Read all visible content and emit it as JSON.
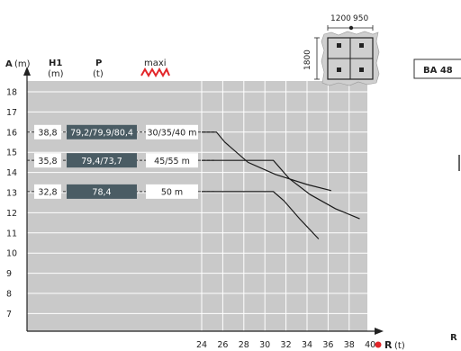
{
  "header": {
    "a_label": "A",
    "a_unit": "(m)",
    "h1_label": "H1",
    "h1_unit": "(m)",
    "p_label": "P",
    "p_unit": "(t)",
    "maxi_label": "maxi"
  },
  "model": "BA 48",
  "base": {
    "width1": "1200",
    "width2": "950",
    "depth": "1800"
  },
  "r_axis": {
    "label": "R",
    "unit": "(t)",
    "cut_label": "R"
  },
  "chart_data": {
    "type": "line",
    "xlabel": "R (t)",
    "ylabel": "A (m)",
    "y_ticks": [
      7,
      8,
      9,
      10,
      11,
      12,
      13,
      14,
      15,
      16,
      17,
      18
    ],
    "x_ticks": [
      24,
      26,
      28,
      30,
      32,
      34,
      36,
      38,
      40
    ],
    "ylim": [
      6.3,
      18.4
    ],
    "grid": true,
    "rows": [
      {
        "h1": "38,8",
        "p": "79,2/79,9/80,4",
        "len": "30/35/40 m",
        "a": 16
      },
      {
        "h1": "35,8",
        "p": "79,4/73,7",
        "len": "45/55 m",
        "a": 14.6
      },
      {
        "h1": "32,8",
        "p": "78,4",
        "len": "50 m",
        "a": 13.05
      }
    ],
    "series": [
      {
        "values": [
          [
            24,
            16
          ],
          [
            25.4,
            16
          ],
          [
            26.2,
            15.5
          ],
          [
            28.4,
            14.5
          ],
          [
            31,
            13.9
          ],
          [
            34,
            13.4
          ],
          [
            36.3,
            13.1
          ]
        ]
      },
      {
        "values": [
          [
            24,
            14.6
          ],
          [
            30.8,
            14.6
          ],
          [
            32.3,
            13.7
          ],
          [
            34.3,
            12.9
          ],
          [
            36.7,
            12.2
          ],
          [
            39,
            11.7
          ]
        ]
      },
      {
        "values": [
          [
            24,
            13.05
          ],
          [
            30.8,
            13.05
          ],
          [
            31.8,
            12.6
          ],
          [
            33.3,
            11.7
          ],
          [
            35.1,
            10.7
          ]
        ]
      }
    ]
  },
  "colors": {
    "plot_bg": "#c9c9c9",
    "grid": "#ffffff",
    "dark_box": "#4a5c64",
    "accent": "#e3262a",
    "curve": "#1a1a1a"
  }
}
